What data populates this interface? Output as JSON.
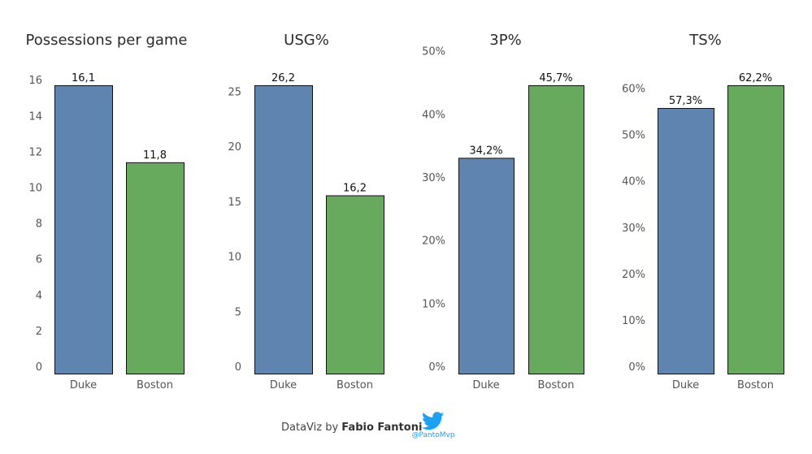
{
  "colors": {
    "duke": "#5f84b0",
    "boston": "#67aa5d",
    "bar_stroke": "#111111"
  },
  "chart_data": [
    {
      "type": "bar",
      "title": "Possessions per game",
      "categories": [
        "Duke",
        "Boston"
      ],
      "values": [
        16.1,
        11.8
      ],
      "value_labels": [
        "16,1",
        "11,8"
      ],
      "ylim": [
        0,
        16.1
      ],
      "yticks": [
        0,
        2,
        4,
        6,
        8,
        10,
        12,
        14,
        16
      ],
      "ytick_labels": [
        "0",
        "2",
        "4",
        "6",
        "8",
        "10",
        "12",
        "14",
        "16"
      ],
      "grid": false
    },
    {
      "type": "bar",
      "title": "USG%",
      "categories": [
        "Duke",
        "Boston"
      ],
      "values": [
        26.2,
        16.2
      ],
      "value_labels": [
        "26,2",
        "16,2"
      ],
      "ylim": [
        0,
        26.2
      ],
      "yticks": [
        0,
        5,
        10,
        15,
        20,
        25
      ],
      "ytick_labels": [
        "0",
        "5",
        "10",
        "15",
        "20",
        "25"
      ],
      "grid": false
    },
    {
      "type": "bar",
      "title": "3P%",
      "categories": [
        "Duke",
        "Boston"
      ],
      "values": [
        34.2,
        45.7
      ],
      "value_labels": [
        "34,2%",
        "45,7%"
      ],
      "ylim": [
        0,
        45.7
      ],
      "yticks": [
        0,
        10,
        20,
        30,
        40,
        50
      ],
      "ytick_labels": [
        "0%",
        "10%",
        "20%",
        "30%",
        "40%",
        "50%"
      ],
      "grid": false
    },
    {
      "type": "bar",
      "title": "TS%",
      "categories": [
        "Duke",
        "Boston"
      ],
      "values": [
        57.3,
        62.2
      ],
      "value_labels": [
        "57,3%",
        "62,2%"
      ],
      "ylim": [
        0,
        62.2
      ],
      "yticks": [
        0,
        10,
        20,
        30,
        40,
        50,
        60
      ],
      "ytick_labels": [
        "0%",
        "10%",
        "20%",
        "30%",
        "40%",
        "50%",
        "60%"
      ],
      "grid": false
    }
  ],
  "credit": {
    "prefix": "DataViz by ",
    "author": "Fabio Fantoni"
  },
  "twitter": {
    "icon": "twitter-bird-icon",
    "handle": "@PantoMvp",
    "color": "#1da1f2"
  }
}
